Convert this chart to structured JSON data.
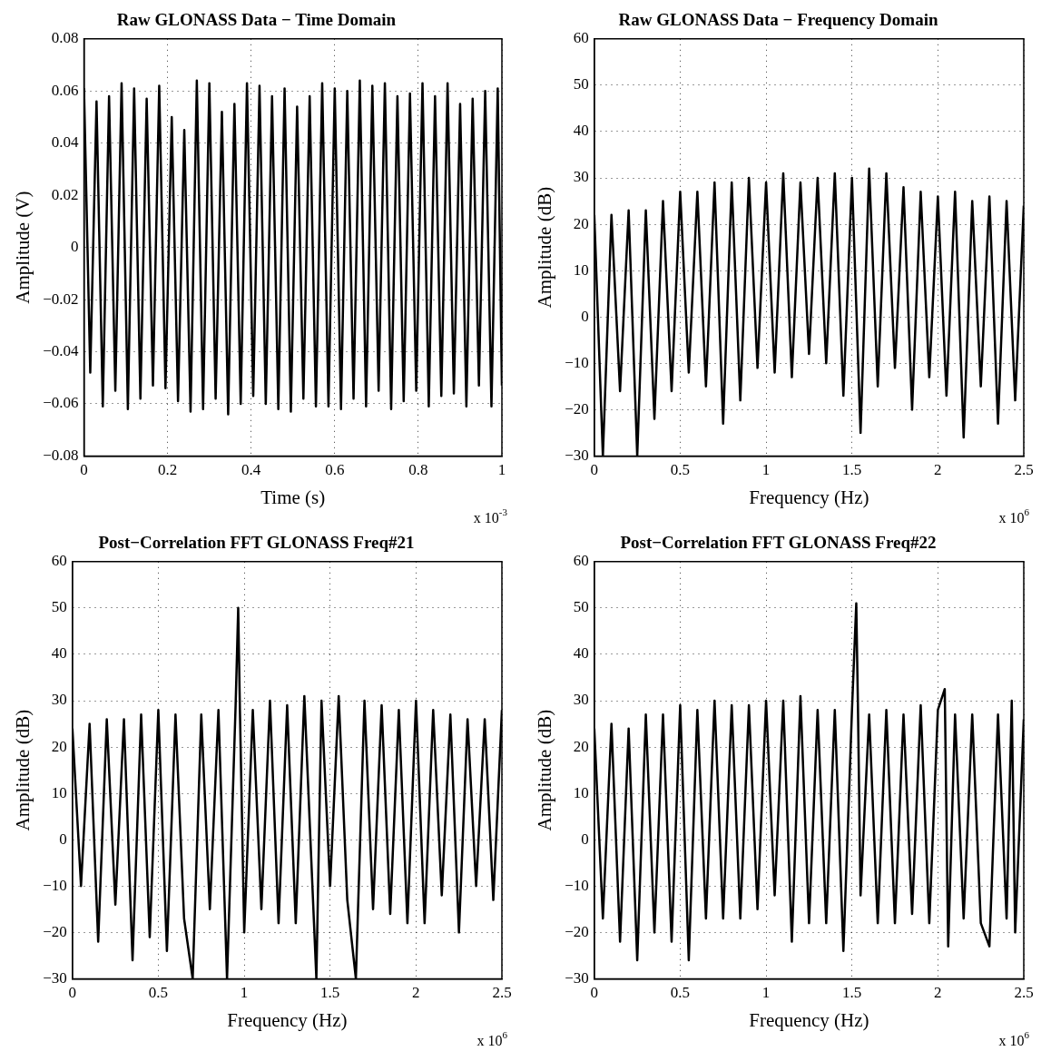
{
  "chart_data": [
    {
      "type": "line",
      "title": "Raw GLONASS Data − Time Domain",
      "xlabel": "Time (s)",
      "ylabel": "Amplitude (V)",
      "annotations": [
        "x 10$^{-3}$"
      ],
      "color": "#000000",
      "grid": true,
      "xlim": [
        0,
        1
      ],
      "xticks": [
        0,
        0.2,
        0.4,
        0.6,
        0.8,
        1
      ],
      "ylim": [
        -0.08,
        0.08
      ],
      "yticks": [
        {
          "value": -0.08,
          "label": "−0.08"
        },
        {
          "value": -0.06,
          "label": "−0.06"
        },
        {
          "value": -0.04,
          "label": "−0.04"
        },
        {
          "value": -0.02,
          "label": "−0.02"
        },
        0,
        0.02,
        0.04,
        0.06,
        0.08
      ],
      "x": [
        0,
        0.015,
        0.03,
        0.045,
        0.06,
        0.075,
        0.09,
        0.105,
        0.12,
        0.135,
        0.15,
        0.165,
        0.18,
        0.195,
        0.21,
        0.225,
        0.24,
        0.255,
        0.27,
        0.285,
        0.3,
        0.315,
        0.33,
        0.345,
        0.36,
        0.375,
        0.39,
        0.405,
        0.42,
        0.435,
        0.45,
        0.465,
        0.48,
        0.495,
        0.51,
        0.525,
        0.54,
        0.555,
        0.57,
        0.585,
        0.6,
        0.615,
        0.63,
        0.645,
        0.66,
        0.675,
        0.69,
        0.705,
        0.72,
        0.735,
        0.75,
        0.765,
        0.78,
        0.795,
        0.81,
        0.825,
        0.84,
        0.855,
        0.87,
        0.885,
        0.9,
        0.915,
        0.93,
        0.945,
        0.96,
        0.975,
        0.99,
        1
      ],
      "values": [
        0.061,
        -0.048,
        0.056,
        -0.061,
        0.058,
        -0.055,
        0.063,
        -0.062,
        0.061,
        -0.058,
        0.057,
        -0.053,
        0.062,
        -0.054,
        0.05,
        -0.059,
        0.045,
        -0.063,
        0.064,
        -0.062,
        0.063,
        -0.058,
        0.052,
        -0.064,
        0.055,
        -0.06,
        0.063,
        -0.057,
        0.062,
        -0.06,
        0.058,
        -0.062,
        0.061,
        -0.063,
        0.054,
        -0.058,
        0.058,
        -0.061,
        0.063,
        -0.061,
        0.061,
        -0.062,
        0.06,
        -0.058,
        0.064,
        -0.061,
        0.062,
        -0.055,
        0.063,
        -0.062,
        0.058,
        -0.059,
        0.059,
        -0.055,
        0.063,
        -0.061,
        0.058,
        -0.057,
        0.063,
        -0.056,
        0.055,
        -0.061,
        0.057,
        -0.053,
        0.06,
        -0.061,
        0.061,
        -0.053
      ]
    },
    {
      "type": "line",
      "title": "Raw GLONASS Data − Frequency Domain",
      "xlabel": "Frequency (Hz)",
      "ylabel": "Amplitude (dB)",
      "annotations": [
        "x 10$^{6}$"
      ],
      "color": "#000000",
      "grid": true,
      "xlim": [
        0,
        2.5
      ],
      "xticks": [
        0,
        0.5,
        1,
        1.5,
        2,
        2.5
      ],
      "ylim": [
        -30,
        60
      ],
      "yticks": [
        {
          "value": -30,
          "label": "−30"
        },
        {
          "value": -20,
          "label": "−20"
        },
        {
          "value": -10,
          "label": "−10"
        },
        0,
        10,
        20,
        30,
        40,
        50,
        60
      ],
      "x": [
        0,
        0.05,
        0.1,
        0.15,
        0.2,
        0.25,
        0.3,
        0.35,
        0.4,
        0.45,
        0.5,
        0.55,
        0.6,
        0.65,
        0.7,
        0.75,
        0.8,
        0.85,
        0.9,
        0.95,
        1,
        1.05,
        1.1,
        1.15,
        1.2,
        1.25,
        1.3,
        1.35,
        1.4,
        1.45,
        1.5,
        1.55,
        1.6,
        1.65,
        1.7,
        1.75,
        1.8,
        1.85,
        1.9,
        1.95,
        2,
        2.05,
        2.1,
        2.15,
        2.2,
        2.25,
        2.3,
        2.35,
        2.4,
        2.45,
        2.5
      ],
      "values": [
        22,
        -30,
        22,
        -16,
        23,
        -30,
        23,
        -22,
        25,
        -16,
        27,
        -12,
        27,
        -15,
        29,
        -23,
        29,
        -18,
        30,
        -11,
        29,
        -12,
        31,
        -13,
        29,
        -8,
        30,
        -10,
        31,
        -17,
        30,
        -25,
        32,
        -15,
        31,
        -11,
        28,
        -20,
        27,
        -13,
        26,
        -17,
        27,
        -26,
        25,
        -15,
        26,
        -23,
        25,
        -18,
        24
      ]
    },
    {
      "type": "line",
      "title": "Post−Correlation FFT GLONASS Freq#21",
      "xlabel": "Frequency (Hz)",
      "ylabel": "Amplitude (dB)",
      "annotations": [
        "x 10$^{6}$"
      ],
      "color": "#000000",
      "grid": true,
      "xlim": [
        0,
        2.5
      ],
      "xticks": [
        0,
        0.5,
        1,
        1.5,
        2,
        2.5
      ],
      "ylim": [
        -30,
        60
      ],
      "yticks": [
        {
          "value": -30,
          "label": "−30"
        },
        {
          "value": -20,
          "label": "−20"
        },
        {
          "value": -10,
          "label": "−10"
        },
        0,
        10,
        20,
        30,
        40,
        50,
        60
      ],
      "x": [
        0,
        0.05,
        0.1,
        0.15,
        0.2,
        0.25,
        0.3,
        0.35,
        0.4,
        0.45,
        0.5,
        0.55,
        0.6,
        0.65,
        0.7,
        0.75,
        0.8,
        0.85,
        0.9,
        0.95,
        0.965,
        0.975,
        1,
        1.05,
        1.1,
        1.15,
        1.2,
        1.25,
        1.3,
        1.35,
        1.42,
        1.45,
        1.5,
        1.55,
        1.6,
        1.65,
        1.7,
        1.75,
        1.8,
        1.85,
        1.9,
        1.95,
        2,
        2.05,
        2.1,
        2.15,
        2.2,
        2.25,
        2.3,
        2.35,
        2.4,
        2.45,
        2.5
      ],
      "values": [
        24,
        -10,
        25,
        -22,
        26,
        -14,
        26,
        -26,
        27,
        -21,
        28,
        -24,
        27,
        -17,
        -30,
        27,
        -15,
        28,
        -30,
        29,
        50,
        28,
        -20,
        28,
        -15,
        30,
        -18,
        29,
        -18,
        31,
        -30,
        30,
        -10,
        31,
        -13,
        -30,
        30,
        -15,
        29,
        -16,
        28,
        -18,
        30,
        -18,
        28,
        -12,
        27,
        -20,
        26,
        -10,
        26,
        -13,
        28
      ]
    },
    {
      "type": "line",
      "title": "Post−Correlation FFT GLONASS Freq#22",
      "xlabel": "Frequency (Hz)",
      "ylabel": "Amplitude (dB)",
      "annotations": [
        "x 10$^{6}$"
      ],
      "color": "#000000",
      "grid": true,
      "xlim": [
        0,
        2.5
      ],
      "xticks": [
        0,
        0.5,
        1,
        1.5,
        2,
        2.5
      ],
      "ylim": [
        -30,
        60
      ],
      "yticks": [
        {
          "value": -30,
          "label": "−30"
        },
        {
          "value": -20,
          "label": "−20"
        },
        {
          "value": -10,
          "label": "−10"
        },
        0,
        10,
        20,
        30,
        40,
        50,
        60
      ],
      "x": [
        0,
        0.05,
        0.1,
        0.15,
        0.2,
        0.25,
        0.3,
        0.35,
        0.4,
        0.45,
        0.5,
        0.55,
        0.6,
        0.65,
        0.7,
        0.75,
        0.8,
        0.85,
        0.9,
        0.95,
        1,
        1.05,
        1.1,
        1.15,
        1.2,
        1.25,
        1.3,
        1.35,
        1.4,
        1.45,
        1.5,
        1.525,
        1.535,
        1.55,
        1.6,
        1.65,
        1.7,
        1.75,
        1.8,
        1.85,
        1.9,
        1.95,
        2,
        2.04,
        2.06,
        2.1,
        2.15,
        2.2,
        2.25,
        2.3,
        2.35,
        2.4,
        2.43,
        2.45,
        2.5
      ],
      "values": [
        24,
        -17,
        25,
        -22,
        24,
        -26,
        27,
        -20,
        27,
        -22,
        29,
        -26,
        28,
        -17,
        30,
        -17,
        29,
        -17,
        29,
        -15,
        30,
        -12,
        30,
        -22,
        31,
        -18,
        28,
        -18,
        28,
        -24,
        28,
        51,
        28,
        -12,
        27,
        -18,
        28,
        -18,
        27,
        -16,
        29,
        -18,
        28,
        32.5,
        -23,
        27,
        -17,
        27,
        -18,
        -23,
        27,
        -17,
        30,
        -20,
        26
      ]
    }
  ]
}
